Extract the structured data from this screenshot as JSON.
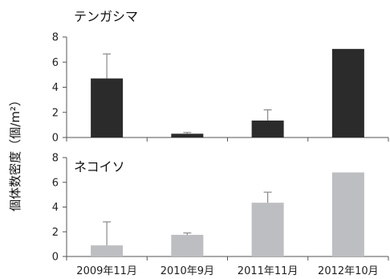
{
  "chart_data": [
    {
      "type": "bar",
      "title": "テンガシマ",
      "categories": [
        "2009年11月",
        "2010年9月",
        "2011年11月",
        "2012年10月"
      ],
      "values": [
        4.7,
        0.3,
        1.35,
        7.05
      ],
      "error_upper": [
        6.65,
        0.4,
        2.2,
        7.05
      ],
      "ylim": [
        0,
        8
      ],
      "yticks": [
        0,
        2,
        4,
        6,
        8
      ],
      "color": "#2b2b2b"
    },
    {
      "type": "bar",
      "title": "ネコイソ",
      "categories": [
        "2009年11月",
        "2010年9月",
        "2011年11月",
        "2012年10月"
      ],
      "values": [
        0.9,
        1.75,
        4.35,
        6.8
      ],
      "error_upper": [
        2.8,
        1.9,
        5.2,
        6.8
      ],
      "ylim": [
        0,
        8
      ],
      "yticks": [
        0,
        2,
        4,
        6,
        8
      ],
      "color": "#bdbec1"
    }
  ],
  "ylabel": "個体数密度（個/m²）",
  "tick_labels": [
    "0",
    "2",
    "4",
    "6",
    "8"
  ]
}
